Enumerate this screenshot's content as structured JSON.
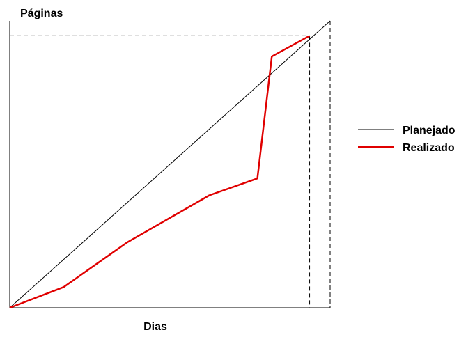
{
  "chart_data": {
    "type": "line",
    "title": "",
    "xlabel": "Dias",
    "ylabel": "Páginas",
    "xlim": [
      0,
      100
    ],
    "ylim": [
      0,
      100
    ],
    "grid": false,
    "legend_position": "right",
    "series": [
      {
        "name": "Planejado",
        "color": "#000000",
        "x": [
          0,
          100
        ],
        "y": [
          0,
          100
        ]
      },
      {
        "name": "Realizado",
        "color": "#e00000",
        "x": [
          0,
          16.8,
          36.8,
          62.3,
          77.3,
          81.8,
          93.6
        ],
        "y": [
          0,
          7.2,
          22.9,
          39.2,
          45.1,
          87.6,
          94.8
        ]
      }
    ],
    "reference_lines": [
      {
        "style": "dashed",
        "orientation": "horizontal",
        "y": 94.8
      },
      {
        "style": "dashed",
        "orientation": "vertical",
        "x": 93.6
      },
      {
        "style": "dashed",
        "orientation": "vertical",
        "x": 100
      }
    ]
  }
}
